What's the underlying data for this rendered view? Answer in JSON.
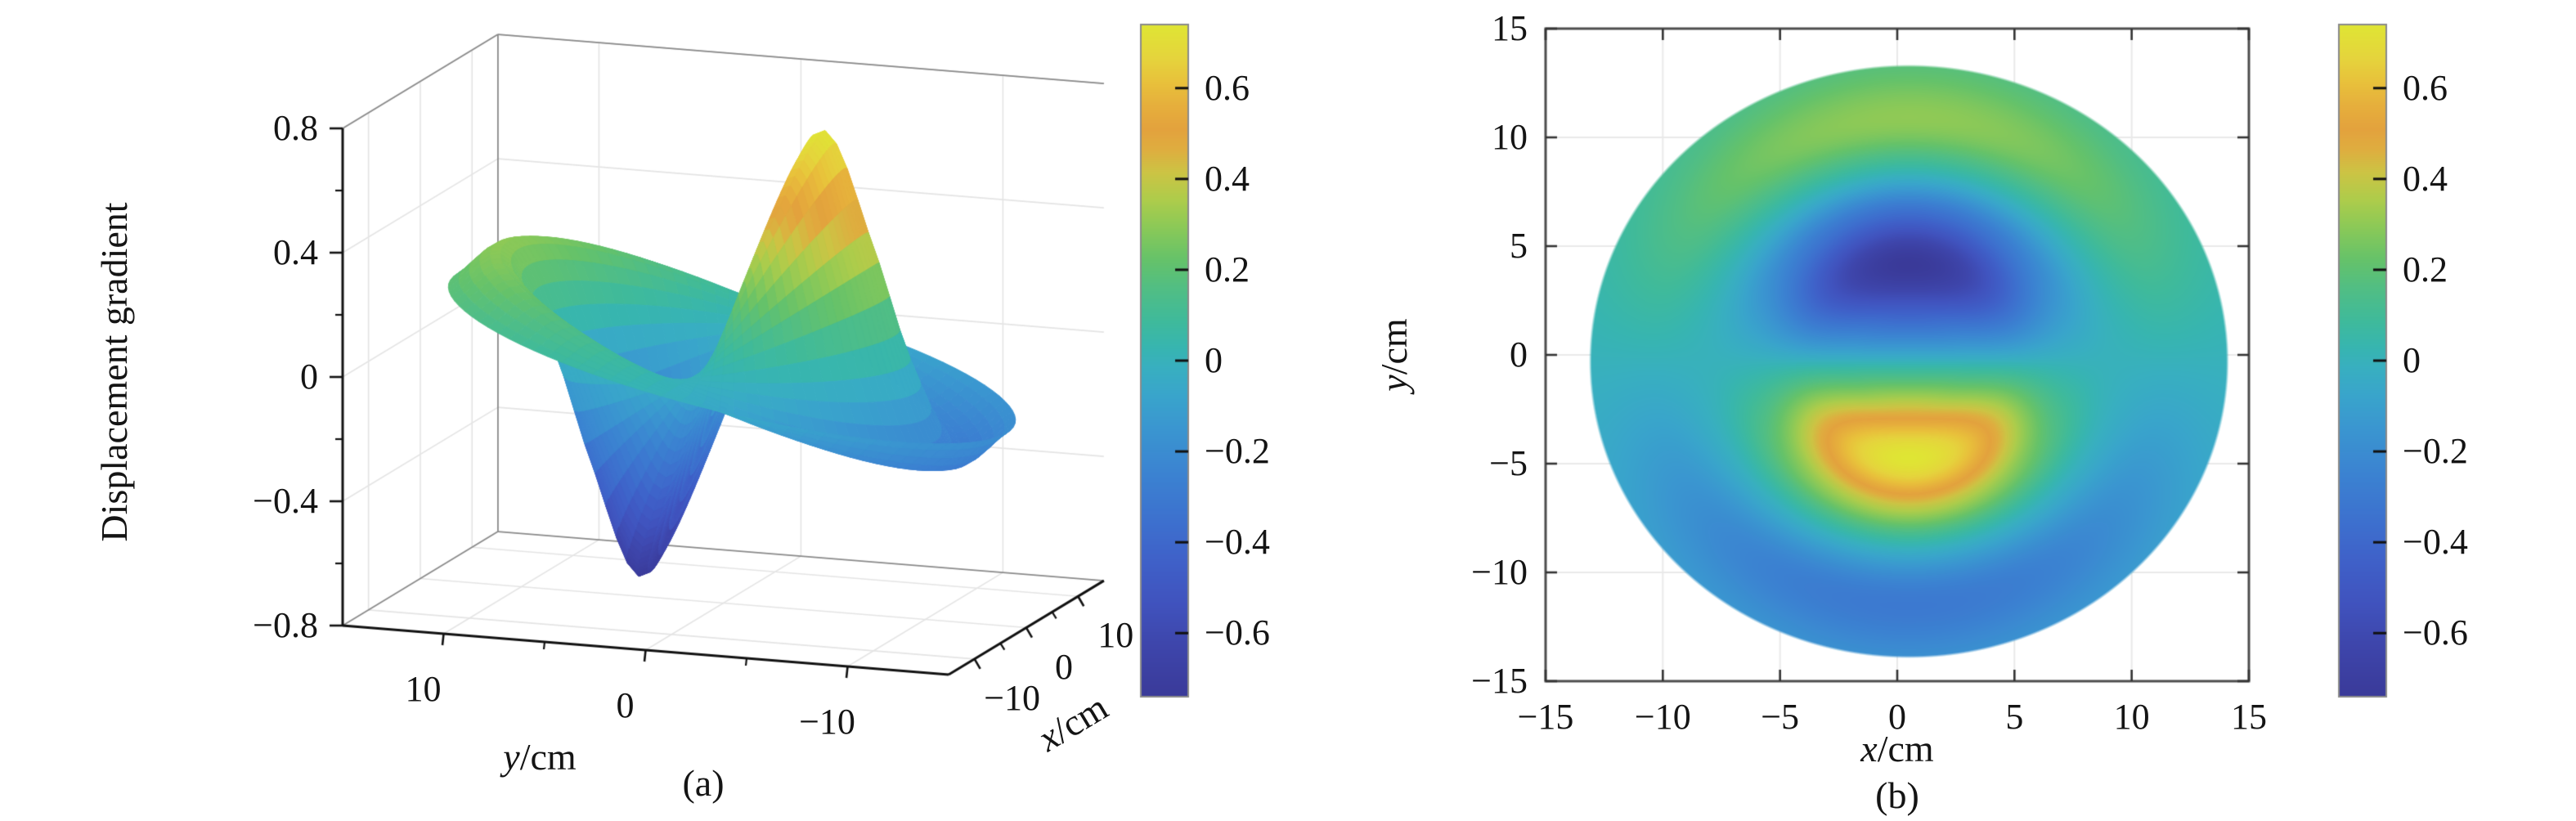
{
  "page": {
    "background": "#ffffff"
  },
  "colormap": {
    "name": "parula-like",
    "range": [
      -0.74,
      0.74
    ],
    "stops": [
      [
        0.0,
        "#3A3A99"
      ],
      [
        0.08,
        "#3E46AC"
      ],
      [
        0.14,
        "#4053BE"
      ],
      [
        0.2,
        "#3F60C8"
      ],
      [
        0.26,
        "#3D70CE"
      ],
      [
        0.33,
        "#3B82D1"
      ],
      [
        0.4,
        "#3A96D0"
      ],
      [
        0.45,
        "#39A5CB"
      ],
      [
        0.49,
        "#38AFC0"
      ],
      [
        0.52,
        "#37B5B0"
      ],
      [
        0.56,
        "#3FBA9B"
      ],
      [
        0.61,
        "#52BE83"
      ],
      [
        0.65,
        "#65C26A"
      ],
      [
        0.7,
        "#8CC957"
      ],
      [
        0.74,
        "#AECC4B"
      ],
      [
        0.78,
        "#CCC444"
      ],
      [
        0.815,
        "#DFAD3F"
      ],
      [
        0.845,
        "#E3A23D"
      ],
      [
        0.88,
        "#E6AF3C"
      ],
      [
        0.915,
        "#E8C13B"
      ],
      [
        0.95,
        "#E5D43C"
      ],
      [
        1.0,
        "#DFE534"
      ]
    ]
  },
  "chart_data": [
    {
      "id": "panel-a",
      "type": "surface",
      "caption": "(a)",
      "xlabel_var": "x",
      "xlabel_unit": "/cm",
      "ylabel_var": "y",
      "ylabel_unit": "/cm",
      "zlabel": "Displacement gradient",
      "xlim": [
        -15,
        15
      ],
      "ylim": [
        -15,
        15
      ],
      "zlim": [
        -0.8,
        0.8
      ],
      "x_ticks": {
        "values": [
          -10,
          0,
          10
        ],
        "labels": [
          "−10",
          "0",
          "10"
        ],
        "minor": [
          -5,
          5
        ]
      },
      "y_ticks": {
        "values": [
          10,
          0,
          -10
        ],
        "labels": [
          "10",
          "0",
          "−10"
        ],
        "minor": [
          5,
          -5
        ]
      },
      "z_ticks": {
        "values": [
          0.8,
          0.4,
          0,
          -0.4,
          -0.8
        ],
        "labels": [
          "0.8",
          "0.4",
          "0",
          "−0.4",
          "−0.8"
        ],
        "minor": [
          0.6,
          0.2,
          -0.2,
          -0.6
        ]
      },
      "colorbar": {
        "ticks": [
          0.6,
          0.4,
          0.2,
          0,
          -0.2,
          -0.4,
          -0.6
        ],
        "labels": [
          "0.6",
          "0.4",
          "0.2",
          "0",
          "−0.2",
          "−0.4",
          "−0.6"
        ],
        "vmin": -0.74,
        "vmax": 0.74
      },
      "grid": true,
      "surface_model": {
        "shape": "circular-membrane vibration mode, one angular node line and one radial node",
        "radius_cm": 13.6,
        "center_cm": [
          0.5,
          -0.3
        ],
        "amplitude": 0.74,
        "angular_term": "-sin(theta)",
        "radial_profile": [
          [
            0,
            0
          ],
          [
            0.16,
            0.58
          ],
          [
            0.33,
            1
          ],
          [
            0.5,
            0.5
          ],
          [
            0.63,
            0
          ],
          [
            0.8,
            -0.4
          ],
          [
            1,
            -0.25
          ]
        ],
        "extrema": {
          "min_value": -0.74,
          "min_at_cm": [
            0.5,
            4.1
          ],
          "max_value": 0.74,
          "max_at_cm": [
            0.5,
            -4.7
          ],
          "rim_value_top_cm": 0.28,
          "rim_value_bottom_cm": -0.28
        }
      }
    },
    {
      "id": "panel-b",
      "type": "heatmap",
      "caption": "(b)",
      "xlabel_var": "x",
      "xlabel_unit": "/cm",
      "ylabel_var": "y",
      "ylabel_unit": "/cm",
      "xlim": [
        -15,
        15
      ],
      "ylim": [
        -15,
        15
      ],
      "x_ticks": {
        "values": [
          -15,
          -10,
          -5,
          0,
          5,
          10,
          15
        ],
        "labels": [
          "−15",
          "−10",
          "−5",
          "0",
          "5",
          "10",
          "15"
        ]
      },
      "y_ticks": {
        "values": [
          15,
          10,
          5,
          0,
          -5,
          -10,
          -15
        ],
        "labels": [
          "15",
          "10",
          "5",
          "0",
          "−5",
          "−10",
          "−15"
        ]
      },
      "colorbar": {
        "ticks": [
          0.6,
          0.4,
          0.2,
          0,
          -0.2,
          -0.4,
          -0.6
        ],
        "labels": [
          "0.6",
          "0.4",
          "0.2",
          "0",
          "−0.2",
          "−0.4",
          "−0.6"
        ],
        "vmin": -0.74,
        "vmax": 0.74
      },
      "grid": true,
      "data_region": {
        "shape": "disk",
        "radius_cm": 13.6,
        "center_cm": [
          0.5,
          -0.3
        ]
      },
      "surface_model": {
        "shape": "same field as panel (a) viewed from above",
        "radius_cm": 13.6,
        "center_cm": [
          0.5,
          -0.3
        ],
        "amplitude": 0.74,
        "angular_term": "-sin(theta)",
        "radial_profile": [
          [
            0,
            0
          ],
          [
            0.16,
            0.58
          ],
          [
            0.33,
            1
          ],
          [
            0.5,
            0.5
          ],
          [
            0.63,
            0
          ],
          [
            0.8,
            -0.4
          ],
          [
            1,
            -0.25
          ]
        ],
        "extrema": {
          "min_value": -0.74,
          "min_at_cm": [
            0.5,
            4.1
          ],
          "max_value": 0.74,
          "max_at_cm": [
            0.5,
            -4.7
          ],
          "rim_value_top_cm": 0.28,
          "rim_value_bottom_cm": -0.28
        }
      }
    }
  ]
}
